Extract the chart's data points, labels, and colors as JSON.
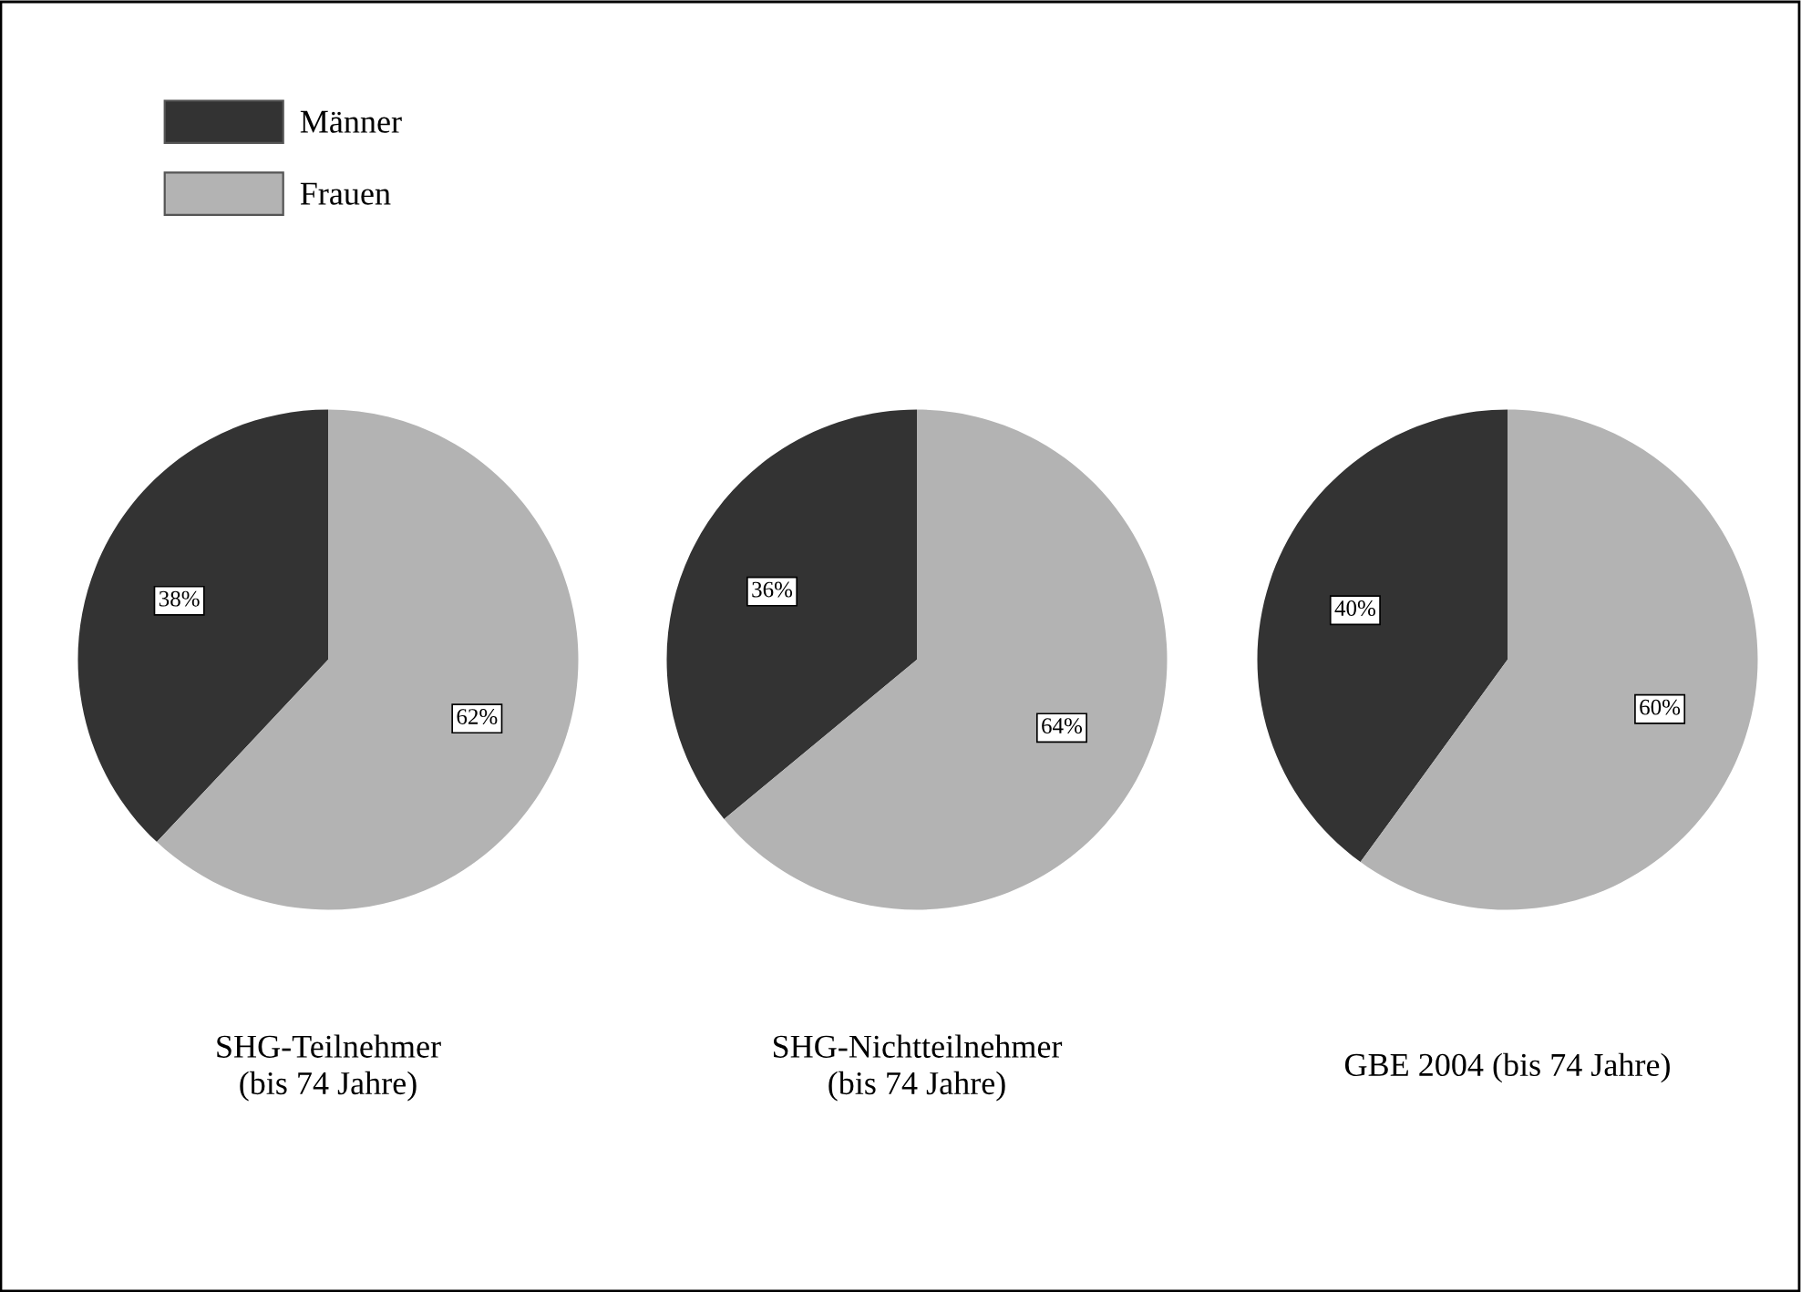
{
  "chart_data": [
    {
      "type": "pie",
      "title": "SHG-Teilnehmer\n(bis 74 Jahre)",
      "categories": [
        "Männer",
        "Frauen"
      ],
      "values": [
        38,
        62
      ],
      "value_labels": [
        "38%",
        "62%"
      ],
      "colors": [
        "#333333",
        "#b3b3b3"
      ],
      "legend": "top left"
    },
    {
      "type": "pie",
      "title": "SHG-Nichtteilnehmer\n(bis 74 Jahre)",
      "categories": [
        null,
        null
      ],
      "values": [
        36,
        64
      ],
      "value_labels": [
        "36%",
        "64%"
      ],
      "colors": [
        "#333333",
        "#b3b3b3"
      ]
    },
    {
      "type": "pie",
      "title": "GBE 2004 (bis 74 Jahre)",
      "categories": [
        null,
        null
      ],
      "values": [
        40,
        60
      ],
      "value_labels": [
        "40%",
        "60%"
      ],
      "colors": [
        "#333333",
        "#b3b3b3"
      ]
    }
  ]
}
